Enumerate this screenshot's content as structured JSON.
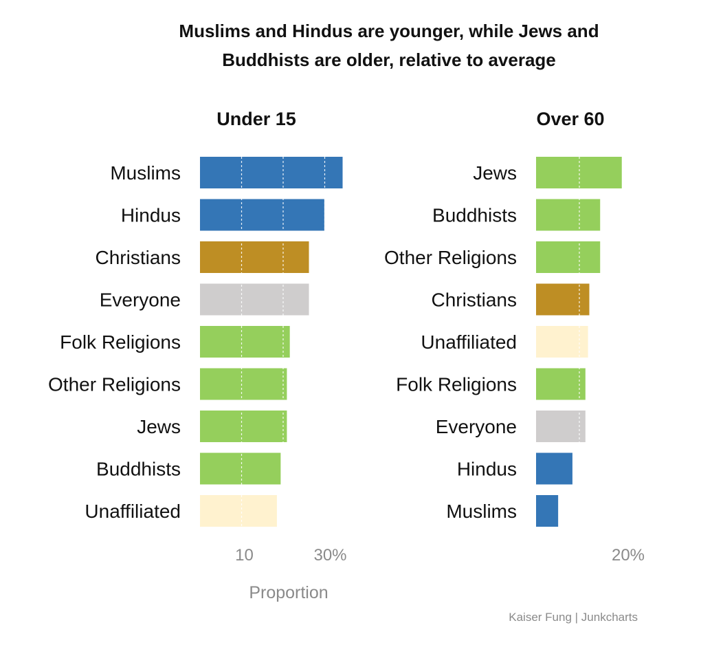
{
  "chart_data": {
    "type": "bar",
    "title_lines": [
      "Muslims and Hindus are younger, while Jews and",
      "Buddhists are older, relative to average"
    ],
    "x_axis_title": "Proportion",
    "credit": "Kaiser Fung | Junkcharts",
    "colors": {
      "Muslims": "#3476b6",
      "Hindus": "#3476b6",
      "Christians": "#be8e24",
      "Everyone": "#cfcdcd",
      "Folk Religions": "#95cf5c",
      "Other Religions": "#95cf5c",
      "Jews": "#95cf5c",
      "Buddhists": "#95cf5c",
      "Unaffiliated": "#fff2cf"
    },
    "panels": [
      {
        "title": "Under 15",
        "orientation": "horizontal",
        "xlim": [
          0,
          40
        ],
        "gridlines": [
          10,
          20,
          30
        ],
        "tick_labels": [
          {
            "value": 10,
            "label": "10"
          },
          {
            "value": 30,
            "label": "30%"
          }
        ],
        "categories": [
          "Muslims",
          "Hindus",
          "Christians",
          "Everyone",
          "Folk Religions",
          "Other Religions",
          "Jews",
          "Buddhists",
          "Unaffiliated"
        ],
        "values": [
          34.3,
          29.9,
          26.2,
          26.2,
          21.6,
          20.9,
          20.9,
          19.4,
          18.5
        ]
      },
      {
        "title": "Over 60",
        "orientation": "horizontal",
        "xlim": [
          0,
          25
        ],
        "gridlines": [
          10
        ],
        "tick_labels": [
          {
            "value": 20,
            "label": "20%"
          }
        ],
        "categories": [
          "Jews",
          "Buddhists",
          "Other Religions",
          "Christians",
          "Unaffiliated",
          "Folk Religions",
          "Everyone",
          "Hindus",
          "Muslims"
        ],
        "values": [
          19.8,
          14.8,
          14.8,
          12.3,
          12.0,
          11.4,
          11.4,
          8.4,
          5.1
        ]
      }
    ]
  }
}
